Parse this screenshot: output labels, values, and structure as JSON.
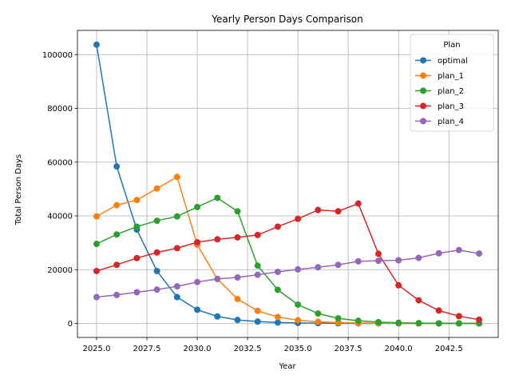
{
  "chart_data": {
    "type": "line",
    "title": "Yearly Person Days Comparison",
    "xlabel": "Year",
    "ylabel": "Total Person Days",
    "xlim": [
      2024.05,
      2044.95
    ],
    "ylim": [
      -5200,
      109000
    ],
    "xticks": [
      2025.0,
      2027.5,
      2030.0,
      2032.5,
      2035.0,
      2037.5,
      2040.0,
      2042.5
    ],
    "xtick_labels": [
      "2025.0",
      "2027.5",
      "2030.0",
      "2032.5",
      "2035.0",
      "2037.5",
      "2040.0",
      "2042.5"
    ],
    "yticks": [
      0,
      20000,
      40000,
      60000,
      80000,
      100000
    ],
    "ytick_labels": [
      "0",
      "20000",
      "40000",
      "60000",
      "80000",
      "100000"
    ],
    "grid": true,
    "legend": {
      "title": "Plan",
      "placement": "top-right"
    },
    "x": [
      2025,
      2026,
      2027,
      2028,
      2029,
      2030,
      2031,
      2032,
      2033,
      2034,
      2035,
      2036,
      2037,
      2038,
      2039,
      2040,
      2041,
      2042,
      2043,
      2044
    ],
    "series": [
      {
        "name": "optimal",
        "color": "#1f77b4",
        "values": [
          103700,
          58400,
          34900,
          19500,
          9800,
          5100,
          2600,
          1300,
          700,
          350,
          180,
          90,
          45,
          20,
          10,
          5,
          3,
          2,
          1,
          0
        ]
      },
      {
        "name": "plan_1",
        "color": "#ff7f0e",
        "values": [
          39800,
          44000,
          45900,
          50200,
          54500,
          29300,
          16500,
          9100,
          4700,
          2400,
          1200,
          600,
          300,
          150,
          80,
          40,
          20,
          10,
          5,
          2
        ]
      },
      {
        "name": "plan_2",
        "color": "#2ca02c",
        "values": [
          29600,
          33100,
          36000,
          38200,
          39800,
          43300,
          46700,
          41700,
          21500,
          12500,
          7000,
          3700,
          1900,
          1000,
          500,
          250,
          120,
          60,
          30,
          15
        ]
      },
      {
        "name": "plan_3",
        "color": "#d62728",
        "values": [
          19500,
          21800,
          24300,
          26400,
          28000,
          30200,
          31300,
          32000,
          32900,
          36000,
          38900,
          42200,
          41700,
          44600,
          25900,
          14200,
          8600,
          4800,
          2700,
          1400
        ]
      },
      {
        "name": "plan_4",
        "color": "#9467bd",
        "values": [
          9800,
          10600,
          11600,
          12600,
          13800,
          15400,
          16600,
          17100,
          18100,
          19200,
          20100,
          20900,
          21800,
          23100,
          23300,
          23500,
          24400,
          26100,
          27300,
          26000
        ]
      }
    ]
  }
}
